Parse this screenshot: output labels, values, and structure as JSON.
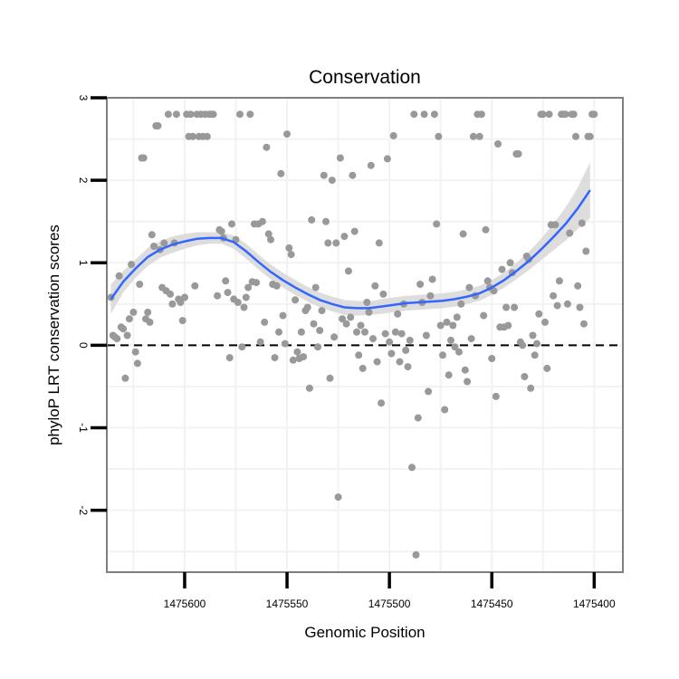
{
  "chart_data": {
    "type": "scatter",
    "title": "Conservation",
    "xlabel": "Genomic Position",
    "ylabel": "phyloP LRT conservation scores",
    "x_reversed": true,
    "xlim": [
      1475638,
      1475386
    ],
    "ylim": [
      -2.75,
      3.0
    ],
    "xticks": [
      1475600,
      1475550,
      1475500,
      1475450,
      1475400
    ],
    "xtick_labels": [
      "1475600",
      "1475550",
      "1475500",
      "1475450",
      "1475400"
    ],
    "yticks": [
      -2,
      -1,
      0,
      1,
      2,
      3
    ],
    "ytick_labels": [
      "-2",
      "-1",
      "0",
      "1",
      "2",
      "3"
    ],
    "grid": true,
    "reference_line": {
      "y": 0,
      "style": "dashed"
    },
    "colors": {
      "points": "#999999",
      "smooth_line": "#3366FF",
      "confidence_band": "#D9D9D9",
      "panel_border": "#7F7F7F",
      "grid": "#F2F2F2"
    },
    "points": [
      {
        "x": 1475636,
        "y": 0.58
      },
      {
        "x": 1475635,
        "y": 0.12
      },
      {
        "x": 1475634,
        "y": 0.1
      },
      {
        "x": 1475633,
        "y": 0.08
      },
      {
        "x": 1475632,
        "y": 0.84
      },
      {
        "x": 1475631,
        "y": 0.22
      },
      {
        "x": 1475630,
        "y": 0.2
      },
      {
        "x": 1475629,
        "y": -0.4
      },
      {
        "x": 1475628,
        "y": 0.12
      },
      {
        "x": 1475627,
        "y": 0.32
      },
      {
        "x": 1475626,
        "y": 0.98
      },
      {
        "x": 1475625,
        "y": 0.4
      },
      {
        "x": 1475624,
        "y": -0.08
      },
      {
        "x": 1475623,
        "y": -0.22
      },
      {
        "x": 1475622,
        "y": 0.74
      },
      {
        "x": 1475621,
        "y": 2.27
      },
      {
        "x": 1475620,
        "y": 2.27
      },
      {
        "x": 1475619,
        "y": 0.32
      },
      {
        "x": 1475618,
        "y": 0.4
      },
      {
        "x": 1475617,
        "y": 0.28
      },
      {
        "x": 1475616,
        "y": 1.34
      },
      {
        "x": 1475615,
        "y": 1.2
      },
      {
        "x": 1475614,
        "y": 2.66
      },
      {
        "x": 1475613,
        "y": 2.66
      },
      {
        "x": 1475612,
        "y": 1.16
      },
      {
        "x": 1475611,
        "y": 0.7
      },
      {
        "x": 1475610,
        "y": 1.24
      },
      {
        "x": 1475609,
        "y": 0.66
      },
      {
        "x": 1475608,
        "y": 2.8
      },
      {
        "x": 1475607,
        "y": 0.62
      },
      {
        "x": 1475606,
        "y": 0.5
      },
      {
        "x": 1475605,
        "y": 1.24
      },
      {
        "x": 1475604,
        "y": 2.8
      },
      {
        "x": 1475603,
        "y": 0.56
      },
      {
        "x": 1475602,
        "y": 0.52
      },
      {
        "x": 1475601,
        "y": 0.3
      },
      {
        "x": 1475600,
        "y": 0.58
      },
      {
        "x": 1475599,
        "y": 2.8
      },
      {
        "x": 1475598,
        "y": 2.53
      },
      {
        "x": 1475597,
        "y": 2.8
      },
      {
        "x": 1475596,
        "y": 2.53
      },
      {
        "x": 1475595,
        "y": 0.72
      },
      {
        "x": 1475594,
        "y": 2.8
      },
      {
        "x": 1475593,
        "y": 2.53
      },
      {
        "x": 1475592,
        "y": 2.8
      },
      {
        "x": 1475591,
        "y": 2.53
      },
      {
        "x": 1475590,
        "y": 2.8
      },
      {
        "x": 1475589,
        "y": 2.53
      },
      {
        "x": 1475588,
        "y": 2.8
      },
      {
        "x": 1475587,
        "y": 2.8
      },
      {
        "x": 1475586,
        "y": 2.8
      },
      {
        "x": 1475584,
        "y": 0.6
      },
      {
        "x": 1475583,
        "y": 1.4
      },
      {
        "x": 1475582,
        "y": 1.38
      },
      {
        "x": 1475581,
        "y": 1.3
      },
      {
        "x": 1475580,
        "y": 0.78
      },
      {
        "x": 1475579,
        "y": 0.64
      },
      {
        "x": 1475578,
        "y": -0.15
      },
      {
        "x": 1475577,
        "y": 1.47
      },
      {
        "x": 1475576,
        "y": 0.56
      },
      {
        "x": 1475575,
        "y": 1.28
      },
      {
        "x": 1475574,
        "y": 0.52
      },
      {
        "x": 1475573,
        "y": 2.8
      },
      {
        "x": 1475572,
        "y": -0.02
      },
      {
        "x": 1475571,
        "y": 0.46
      },
      {
        "x": 1475570,
        "y": 0.58
      },
      {
        "x": 1475569,
        "y": 0.7
      },
      {
        "x": 1475568,
        "y": 2.8
      },
      {
        "x": 1475567,
        "y": 0.77
      },
      {
        "x": 1475566,
        "y": 1.47
      },
      {
        "x": 1475565,
        "y": 0.76
      },
      {
        "x": 1475564,
        "y": 1.47
      },
      {
        "x": 1475563,
        "y": 0.04
      },
      {
        "x": 1475562,
        "y": 1.5
      },
      {
        "x": 1475561,
        "y": 0.28
      },
      {
        "x": 1475560,
        "y": 2.4
      },
      {
        "x": 1475559,
        "y": 1.35
      },
      {
        "x": 1475558,
        "y": 1.28
      },
      {
        "x": 1475557,
        "y": 0.74
      },
      {
        "x": 1475556,
        "y": -0.15
      },
      {
        "x": 1475555,
        "y": 0.72
      },
      {
        "x": 1475554,
        "y": 0.16
      },
      {
        "x": 1475553,
        "y": 2.08
      },
      {
        "x": 1475552,
        "y": 0.36
      },
      {
        "x": 1475551,
        "y": 0.02
      },
      {
        "x": 1475550,
        "y": 2.56
      },
      {
        "x": 1475549,
        "y": 1.18
      },
      {
        "x": 1475548,
        "y": 1.1
      },
      {
        "x": 1475547,
        "y": -0.18
      },
      {
        "x": 1475546,
        "y": 0.55
      },
      {
        "x": 1475545,
        "y": -0.08
      },
      {
        "x": 1475544,
        "y": -0.16
      },
      {
        "x": 1475543,
        "y": 0.16
      },
      {
        "x": 1475542,
        "y": -0.14
      },
      {
        "x": 1475541,
        "y": 0.42
      },
      {
        "x": 1475540,
        "y": 0.46
      },
      {
        "x": 1475539,
        "y": -0.52
      },
      {
        "x": 1475538,
        "y": 1.52
      },
      {
        "x": 1475537,
        "y": 0.26
      },
      {
        "x": 1475536,
        "y": 0.7
      },
      {
        "x": 1475535,
        "y": -0.02
      },
      {
        "x": 1475534,
        "y": 0.18
      },
      {
        "x": 1475533,
        "y": 0.42
      },
      {
        "x": 1475532,
        "y": 2.06
      },
      {
        "x": 1475531,
        "y": 1.5
      },
      {
        "x": 1475530,
        "y": 1.24
      },
      {
        "x": 1475529,
        "y": -0.4
      },
      {
        "x": 1475528,
        "y": 2.0
      },
      {
        "x": 1475527,
        "y": 0.1
      },
      {
        "x": 1475526,
        "y": 1.24
      },
      {
        "x": 1475525,
        "y": -1.84
      },
      {
        "x": 1475524,
        "y": 2.27
      },
      {
        "x": 1475523,
        "y": 0.32
      },
      {
        "x": 1475522,
        "y": 1.32
      },
      {
        "x": 1475521,
        "y": 0.26
      },
      {
        "x": 1475520,
        "y": 0.9
      },
      {
        "x": 1475519,
        "y": 0.34
      },
      {
        "x": 1475518,
        "y": 2.06
      },
      {
        "x": 1475517,
        "y": 1.38
      },
      {
        "x": 1475516,
        "y": 0.16
      },
      {
        "x": 1475515,
        "y": -0.12
      },
      {
        "x": 1475514,
        "y": 0.24
      },
      {
        "x": 1475513,
        "y": -0.28
      },
      {
        "x": 1475512,
        "y": 0.16
      },
      {
        "x": 1475511,
        "y": 0.52
      },
      {
        "x": 1475510,
        "y": 0.4
      },
      {
        "x": 1475509,
        "y": 2.18
      },
      {
        "x": 1475508,
        "y": 0.08
      },
      {
        "x": 1475507,
        "y": 0.72
      },
      {
        "x": 1475506,
        "y": -0.2
      },
      {
        "x": 1475505,
        "y": 1.24
      },
      {
        "x": 1475504,
        "y": -0.7
      },
      {
        "x": 1475503,
        "y": 0.62
      },
      {
        "x": 1475502,
        "y": 0.14
      },
      {
        "x": 1475501,
        "y": 2.26
      },
      {
        "x": 1475500,
        "y": 0.04
      },
      {
        "x": 1475499,
        "y": -0.1
      },
      {
        "x": 1475498,
        "y": 2.54
      },
      {
        "x": 1475497,
        "y": 0.16
      },
      {
        "x": 1475496,
        "y": 0.38
      },
      {
        "x": 1475495,
        "y": -0.2
      },
      {
        "x": 1475494,
        "y": 0.14
      },
      {
        "x": 1475493,
        "y": 0.5
      },
      {
        "x": 1475492,
        "y": -0.06
      },
      {
        "x": 1475491,
        "y": -0.26
      },
      {
        "x": 1475490,
        "y": 0.06
      },
      {
        "x": 1475489,
        "y": -1.48
      },
      {
        "x": 1475488,
        "y": 2.8
      },
      {
        "x": 1475487,
        "y": -2.54
      },
      {
        "x": 1475486,
        "y": -0.88
      },
      {
        "x": 1475485,
        "y": 0.74
      },
      {
        "x": 1475484,
        "y": 0.52
      },
      {
        "x": 1475483,
        "y": 2.8
      },
      {
        "x": 1475482,
        "y": 0.12
      },
      {
        "x": 1475481,
        "y": -0.56
      },
      {
        "x": 1475480,
        "y": 0.6
      },
      {
        "x": 1475479,
        "y": 0.8
      },
      {
        "x": 1475478,
        "y": 2.8
      },
      {
        "x": 1475477,
        "y": 1.47
      },
      {
        "x": 1475476,
        "y": 2.53
      },
      {
        "x": 1475475,
        "y": 0.24
      },
      {
        "x": 1475474,
        "y": -0.12
      },
      {
        "x": 1475473,
        "y": -0.78
      },
      {
        "x": 1475472,
        "y": 0.28
      },
      {
        "x": 1475471,
        "y": -0.36
      },
      {
        "x": 1475470,
        "y": 0.06
      },
      {
        "x": 1475469,
        "y": 0.24
      },
      {
        "x": 1475468,
        "y": -0.02
      },
      {
        "x": 1475467,
        "y": 0.34
      },
      {
        "x": 1475466,
        "y": -0.08
      },
      {
        "x": 1475465,
        "y": 0.5
      },
      {
        "x": 1475464,
        "y": 1.35
      },
      {
        "x": 1475463,
        "y": -0.3
      },
      {
        "x": 1475462,
        "y": -0.44
      },
      {
        "x": 1475461,
        "y": 0.7
      },
      {
        "x": 1475460,
        "y": 0.08
      },
      {
        "x": 1475459,
        "y": 2.53
      },
      {
        "x": 1475458,
        "y": 0.6
      },
      {
        "x": 1475457,
        "y": 2.8
      },
      {
        "x": 1475456,
        "y": 2.53
      },
      {
        "x": 1475455,
        "y": 2.8
      },
      {
        "x": 1475454,
        "y": 0.36
      },
      {
        "x": 1475453,
        "y": 1.4
      },
      {
        "x": 1475452,
        "y": 0.78
      },
      {
        "x": 1475451,
        "y": 0.7
      },
      {
        "x": 1475450,
        "y": -0.16
      },
      {
        "x": 1475449,
        "y": 0.66
      },
      {
        "x": 1475448,
        "y": -0.62
      },
      {
        "x": 1475447,
        "y": 2.44
      },
      {
        "x": 1475446,
        "y": 0.22
      },
      {
        "x": 1475445,
        "y": 0.92
      },
      {
        "x": 1475444,
        "y": 0.22
      },
      {
        "x": 1475443,
        "y": 0.46
      },
      {
        "x": 1475442,
        "y": 0.24
      },
      {
        "x": 1475441,
        "y": 1.0
      },
      {
        "x": 1475440,
        "y": 0.88
      },
      {
        "x": 1475439,
        "y": 0.46
      },
      {
        "x": 1475438,
        "y": 2.32
      },
      {
        "x": 1475437,
        "y": 2.32
      },
      {
        "x": 1475436,
        "y": 0.04
      },
      {
        "x": 1475435,
        "y": 0.0
      },
      {
        "x": 1475434,
        "y": -0.38
      },
      {
        "x": 1475433,
        "y": 1.08
      },
      {
        "x": 1475432,
        "y": 1.04
      },
      {
        "x": 1475431,
        "y": -0.52
      },
      {
        "x": 1475430,
        "y": 0.12
      },
      {
        "x": 1475429,
        "y": -0.12
      },
      {
        "x": 1475428,
        "y": 0.02
      },
      {
        "x": 1475427,
        "y": 0.38
      },
      {
        "x": 1475426,
        "y": 2.8
      },
      {
        "x": 1475425,
        "y": 2.8
      },
      {
        "x": 1475424,
        "y": 0.28
      },
      {
        "x": 1475423,
        "y": -0.28
      },
      {
        "x": 1475422,
        "y": 2.8
      },
      {
        "x": 1475421,
        "y": 1.46
      },
      {
        "x": 1475420,
        "y": 0.6
      },
      {
        "x": 1475419,
        "y": 1.46
      },
      {
        "x": 1475418,
        "y": 0.48
      },
      {
        "x": 1475417,
        "y": 0.78
      },
      {
        "x": 1475416,
        "y": 2.8
      },
      {
        "x": 1475415,
        "y": 2.8
      },
      {
        "x": 1475414,
        "y": 2.8
      },
      {
        "x": 1475413,
        "y": 0.5
      },
      {
        "x": 1475412,
        "y": 1.36
      },
      {
        "x": 1475411,
        "y": 2.8
      },
      {
        "x": 1475410,
        "y": 2.8
      },
      {
        "x": 1475409,
        "y": 2.53
      },
      {
        "x": 1475408,
        "y": 0.72
      },
      {
        "x": 1475407,
        "y": 0.46
      },
      {
        "x": 1475406,
        "y": 1.48
      },
      {
        "x": 1475405,
        "y": 0.26
      },
      {
        "x": 1475404,
        "y": 1.14
      },
      {
        "x": 1475403,
        "y": 2.53
      },
      {
        "x": 1475402,
        "y": 2.53
      },
      {
        "x": 1475401,
        "y": 2.8
      },
      {
        "x": 1475400,
        "y": 2.8
      }
    ],
    "smooth": {
      "x": [
        1475636,
        1475630,
        1475624,
        1475618,
        1475612,
        1475606,
        1475600,
        1475594,
        1475588,
        1475582,
        1475576,
        1475570,
        1475564,
        1475558,
        1475552,
        1475546,
        1475540,
        1475534,
        1475528,
        1475522,
        1475516,
        1475510,
        1475504,
        1475498,
        1475492,
        1475486,
        1475480,
        1475474,
        1475468,
        1475462,
        1475456,
        1475450,
        1475444,
        1475438,
        1475432,
        1475426,
        1475420,
        1475414,
        1475408,
        1475402
      ],
      "y": [
        0.56,
        0.77,
        0.93,
        1.07,
        1.16,
        1.22,
        1.26,
        1.29,
        1.3,
        1.3,
        1.25,
        1.14,
        1.01,
        0.89,
        0.79,
        0.7,
        0.62,
        0.55,
        0.5,
        0.46,
        0.45,
        0.45,
        0.47,
        0.49,
        0.51,
        0.52,
        0.53,
        0.54,
        0.56,
        0.59,
        0.63,
        0.7,
        0.79,
        0.9,
        1.02,
        1.16,
        1.31,
        1.47,
        1.66,
        1.88
      ],
      "lower": [
        0.38,
        0.64,
        0.82,
        0.96,
        1.06,
        1.12,
        1.17,
        1.21,
        1.23,
        1.23,
        1.17,
        1.05,
        0.92,
        0.8,
        0.7,
        0.61,
        0.53,
        0.46,
        0.41,
        0.37,
        0.36,
        0.37,
        0.38,
        0.4,
        0.42,
        0.43,
        0.44,
        0.45,
        0.47,
        0.5,
        0.54,
        0.61,
        0.7,
        0.8,
        0.91,
        1.03,
        1.15,
        1.27,
        1.41,
        1.54
      ],
      "upper": [
        0.74,
        0.9,
        1.04,
        1.18,
        1.26,
        1.32,
        1.35,
        1.37,
        1.37,
        1.37,
        1.33,
        1.23,
        1.1,
        0.98,
        0.88,
        0.79,
        0.71,
        0.64,
        0.59,
        0.55,
        0.54,
        0.53,
        0.56,
        0.58,
        0.6,
        0.61,
        0.62,
        0.63,
        0.65,
        0.68,
        0.72,
        0.79,
        0.88,
        1.0,
        1.13,
        1.29,
        1.47,
        1.67,
        1.91,
        2.22
      ]
    }
  }
}
